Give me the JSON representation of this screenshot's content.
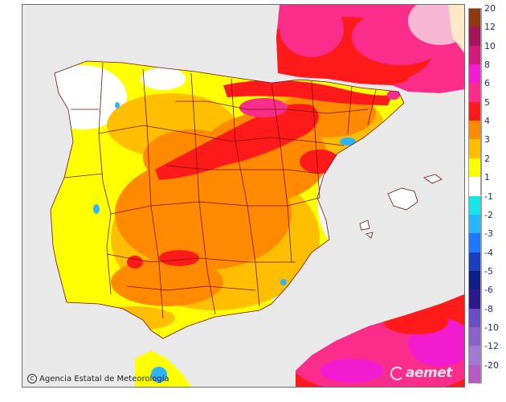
{
  "map": {
    "credit": "Agencia Estatal de Meteorología",
    "logo": "aemet",
    "colors": {
      "sea": "#e9e9e9",
      "land_neutral": "#ffffff",
      "border": "#7a1010",
      "frame": "#6c6c6c",
      "legend_text": "#1a2b8c"
    }
  },
  "legend": {
    "title": "",
    "classes": [
      {
        "label": "20",
        "color": "#8c3a12"
      },
      {
        "label": "12",
        "color": "#a3175a"
      },
      {
        "label": "10",
        "color": "#d11a7b"
      },
      {
        "label": "8",
        "color": "#f21dd0"
      },
      {
        "label": "6",
        "color": "#fa2e8a"
      },
      {
        "label": "5",
        "color": "#ff1a1a"
      },
      {
        "label": "4",
        "color": "#ff8a00"
      },
      {
        "label": "3",
        "color": "#ffbf00"
      },
      {
        "label": "2",
        "color": "#ffff00"
      },
      {
        "label": "1",
        "color": "#ffffff"
      },
      {
        "label": "-1",
        "color": "#18e6e6"
      },
      {
        "label": "-2",
        "color": "#2bb4ff"
      },
      {
        "label": "-3",
        "color": "#1f78ff"
      },
      {
        "label": "-4",
        "color": "#1d3fbf"
      },
      {
        "label": "-5",
        "color": "#0f1f85"
      },
      {
        "label": "-6",
        "color": "#2a1a8a"
      },
      {
        "label": "-8",
        "color": "#6a4ec2"
      },
      {
        "label": "-10",
        "color": "#8a63c9"
      },
      {
        "label": "-12",
        "color": "#a07bd0"
      },
      {
        "label": "-20",
        "color": "#b55ac2"
      }
    ]
  }
}
